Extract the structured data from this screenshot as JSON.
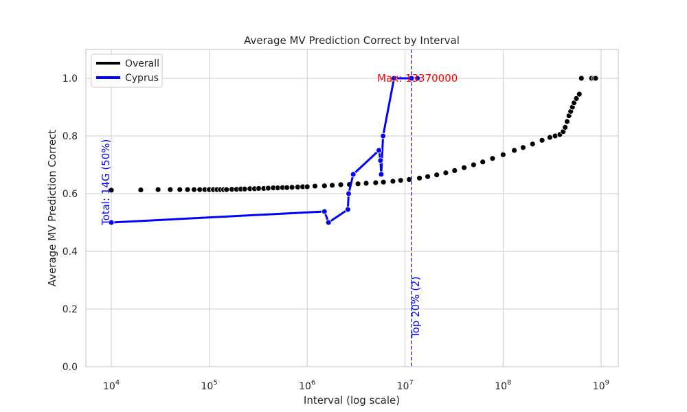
{
  "chart_data": {
    "type": "line",
    "title": "Average MV Prediction Correct by Interval",
    "xlabel": "Interval (log scale)",
    "ylabel": "Average MV Prediction Correct",
    "x_scale": "log",
    "xlim": [
      5500,
      1500000000
    ],
    "ylim": [
      0,
      1.1
    ],
    "x_ticks": [
      10000,
      100000,
      1000000,
      10000000,
      100000000,
      1000000000
    ],
    "x_tick_labels": [
      {
        "base": "10",
        "exp": "4"
      },
      {
        "base": "10",
        "exp": "5"
      },
      {
        "base": "10",
        "exp": "6"
      },
      {
        "base": "10",
        "exp": "7"
      },
      {
        "base": "10",
        "exp": "8"
      },
      {
        "base": "10",
        "exp": "9"
      }
    ],
    "y_ticks": [
      0.0,
      0.2,
      0.4,
      0.6,
      0.8,
      1.0
    ],
    "y_tick_labels": [
      "0.0",
      "0.2",
      "0.4",
      "0.6",
      "0.8",
      "1.0"
    ],
    "grid": true,
    "legend": {
      "position": "top-left",
      "entries": [
        {
          "name": "Overall",
          "color": "#000000"
        },
        {
          "name": "Cyprus",
          "color": "#0000ff"
        }
      ]
    },
    "series": [
      {
        "name": "Overall",
        "color": "#000000",
        "style": "markers",
        "points": [
          [
            10000,
            0.612
          ],
          [
            20000,
            0.613
          ],
          [
            30000,
            0.614
          ],
          [
            40000,
            0.614
          ],
          [
            50000,
            0.614
          ],
          [
            60000,
            0.614
          ],
          [
            70000,
            0.614
          ],
          [
            80000,
            0.614
          ],
          [
            90000,
            0.614
          ],
          [
            100000,
            0.614
          ],
          [
            110000,
            0.614
          ],
          [
            120000,
            0.614
          ],
          [
            130000,
            0.614
          ],
          [
            140000,
            0.614
          ],
          [
            150000,
            0.614
          ],
          [
            170000,
            0.615
          ],
          [
            190000,
            0.615
          ],
          [
            210000,
            0.616
          ],
          [
            230000,
            0.616
          ],
          [
            260000,
            0.617
          ],
          [
            290000,
            0.617
          ],
          [
            320000,
            0.618
          ],
          [
            360000,
            0.618
          ],
          [
            400000,
            0.619
          ],
          [
            450000,
            0.62
          ],
          [
            500000,
            0.62
          ],
          [
            560000,
            0.621
          ],
          [
            620000,
            0.621
          ],
          [
            700000,
            0.622
          ],
          [
            800000,
            0.623
          ],
          [
            900000,
            0.624
          ],
          [
            1000000,
            0.624
          ],
          [
            1200000,
            0.626
          ],
          [
            1500000,
            0.627
          ],
          [
            1800000,
            0.629
          ],
          [
            2200000,
            0.631
          ],
          [
            2700000,
            0.632
          ],
          [
            3300000,
            0.634
          ],
          [
            4000000,
            0.636
          ],
          [
            5000000,
            0.638
          ],
          [
            6000000,
            0.64
          ],
          [
            7500000,
            0.643
          ],
          [
            9000000,
            0.646
          ],
          [
            11000000,
            0.649
          ],
          [
            14000000,
            0.654
          ],
          [
            17000000,
            0.659
          ],
          [
            21000000,
            0.665
          ],
          [
            26000000,
            0.672
          ],
          [
            32000000,
            0.68
          ],
          [
            40000000,
            0.69
          ],
          [
            50000000,
            0.7
          ],
          [
            62000000,
            0.71
          ],
          [
            78000000,
            0.722
          ],
          [
            100000000,
            0.735
          ],
          [
            130000000,
            0.75
          ],
          [
            160000000,
            0.76
          ],
          [
            200000000,
            0.772
          ],
          [
            250000000,
            0.785
          ],
          [
            300000000,
            0.795
          ],
          [
            340000000,
            0.8
          ],
          [
            380000000,
            0.805
          ],
          [
            410000000,
            0.815
          ],
          [
            430000000,
            0.83
          ],
          [
            450000000,
            0.85
          ],
          [
            470000000,
            0.87
          ],
          [
            490000000,
            0.885
          ],
          [
            510000000,
            0.9
          ],
          [
            530000000,
            0.915
          ],
          [
            560000000,
            0.93
          ],
          [
            600000000,
            0.945
          ],
          [
            630000000,
            1.0
          ],
          [
            800000000,
            1.0
          ],
          [
            850000000,
            1.0
          ],
          [
            880000000,
            1.0
          ]
        ]
      },
      {
        "name": "Cyprus",
        "color": "#0000ff",
        "style": "line-markers",
        "points": [
          [
            10000,
            0.5
          ],
          [
            1500000,
            0.538
          ],
          [
            1650000,
            0.5
          ],
          [
            2600000,
            0.545
          ],
          [
            2650000,
            0.6
          ],
          [
            2950000,
            0.667
          ],
          [
            5400000,
            0.75
          ],
          [
            5600000,
            0.715
          ],
          [
            5700000,
            0.667
          ],
          [
            5950000,
            0.8
          ],
          [
            7700000,
            1.0
          ],
          [
            11600000,
            1.0
          ],
          [
            13370000,
            1.0
          ]
        ]
      }
    ],
    "annotations": [
      {
        "text": "Max: 13370000",
        "x": 13370000,
        "y": 1.0,
        "color": "#ff0000"
      },
      {
        "text": "Top 20% (2)",
        "x": 11600000,
        "orientation": "vertical",
        "color": "#0000ff"
      },
      {
        "text": "Total: 14G (50%)",
        "x": 10000,
        "orientation": "vertical",
        "color": "#0000ff"
      }
    ],
    "vline": {
      "x": 11600000,
      "color": "#0000ff",
      "style": "dashed"
    }
  }
}
